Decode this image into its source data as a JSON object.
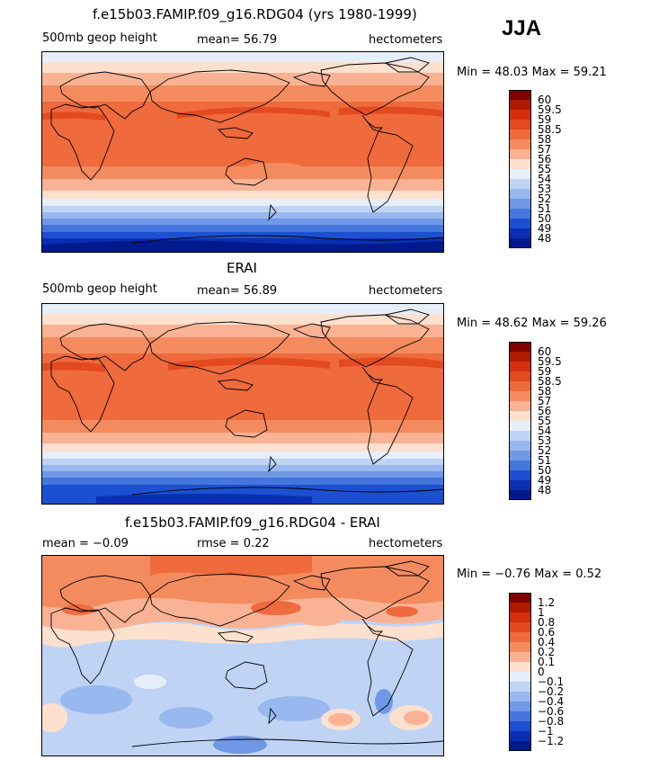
{
  "season": "JJA",
  "panels": [
    {
      "title": "f.e15b03.FAMIP.f09_g16.RDG04 (yrs 1980-1999)",
      "left_label": "500mb geop height",
      "mid_label": "mean=  56.79",
      "units": "hectometers",
      "minmax": "Min =  48.03 Max =  59.21",
      "colorbar_labels": [
        "60",
        "59.5",
        "59",
        "58.5",
        "58",
        "57",
        "56",
        "55",
        "54",
        "53",
        "52",
        "51",
        "50",
        "49",
        "48"
      ],
      "colors": [
        "#800000",
        "#b01a00",
        "#d62f0f",
        "#e34a20",
        "#ef6a3c",
        "#f48b5e",
        "#f9b294",
        "#fde0ce",
        "#e6eefa",
        "#bfd3f5",
        "#99b8ef",
        "#6f98e6",
        "#4576dd",
        "#1c50d0",
        "#0b2fb3",
        "#001a8c"
      ]
    },
    {
      "title": "ERAI",
      "left_label": "500mb geop height",
      "mid_label": "mean=  56.89",
      "units": "hectometers",
      "minmax": "Min =  48.62 Max =  59.26",
      "colorbar_labels": [
        "60",
        "59.5",
        "59",
        "58.5",
        "58",
        "57",
        "56",
        "55",
        "54",
        "53",
        "52",
        "51",
        "50",
        "49",
        "48"
      ],
      "colors": [
        "#800000",
        "#b01a00",
        "#d62f0f",
        "#e34a20",
        "#ef6a3c",
        "#f48b5e",
        "#f9b294",
        "#fde0ce",
        "#e6eefa",
        "#bfd3f5",
        "#99b8ef",
        "#6f98e6",
        "#4576dd",
        "#1c50d0",
        "#0b2fb3",
        "#001a8c"
      ]
    },
    {
      "title": "f.e15b03.FAMIP.f09_g16.RDG04 - ERAI",
      "left_label": "mean =  −0.09",
      "mid_label": "rmse =   0.22",
      "units": "hectometers",
      "minmax": "Min =  −0.76 Max =   0.52",
      "colorbar_labels": [
        "1.2",
        "1",
        "0.8",
        "0.6",
        "0.4",
        "0.2",
        "0.1",
        "0",
        "−0.1",
        "−0.2",
        "−0.4",
        "−0.6",
        "−0.8",
        "−1",
        "−1.2"
      ],
      "colors": [
        "#800000",
        "#b01a00",
        "#d62f0f",
        "#e34a20",
        "#ef6a3c",
        "#f48b5e",
        "#f9b294",
        "#fde0ce",
        "#e6eefa",
        "#bfd3f5",
        "#99b8ef",
        "#6f98e6",
        "#4576dd",
        "#1c50d0",
        "#0b2fb3",
        "#001a8c"
      ]
    }
  ]
}
